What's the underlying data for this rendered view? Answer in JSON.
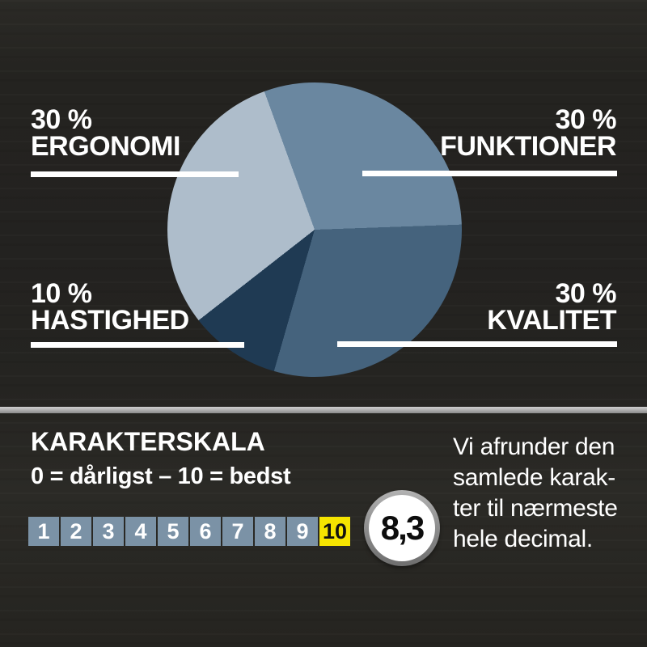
{
  "chart_data": {
    "type": "pie",
    "title": "",
    "start_angle_deg": -20,
    "legend_position": "callout-labels",
    "slices": [
      {
        "label": "FUNKTIONER",
        "pct_label": "30 %",
        "value": 30,
        "color": "#6a87a0"
      },
      {
        "label": "KVALITET",
        "pct_label": "30 %",
        "value": 30,
        "color": "#45637d"
      },
      {
        "label": "HASTIGHED",
        "pct_label": "10 %",
        "value": 10,
        "color": "#1f3a53"
      },
      {
        "label": "ERGONOMI",
        "pct_label": "30 %",
        "value": 30,
        "color": "#aebdcb"
      }
    ]
  },
  "scale": {
    "title": "KARAKTERSKALA",
    "subtitle": "0 = dårligst – 10 = bedst",
    "numbers": [
      "1",
      "2",
      "3",
      "4",
      "5",
      "6",
      "7",
      "8",
      "9",
      "10"
    ],
    "highlighted": "10",
    "box_color": "#7b92a6",
    "highlight_color": "#f5e400",
    "score": "8,3"
  },
  "note": {
    "lines": [
      "Vi afrunder den",
      "samlede karak-",
      "ter til nærmeste",
      "hele decimal."
    ]
  },
  "colors": {
    "background": "#252420",
    "text": "#ffffff",
    "divider": "#b3b3b3",
    "badge_ring": "#8a8a8a"
  }
}
